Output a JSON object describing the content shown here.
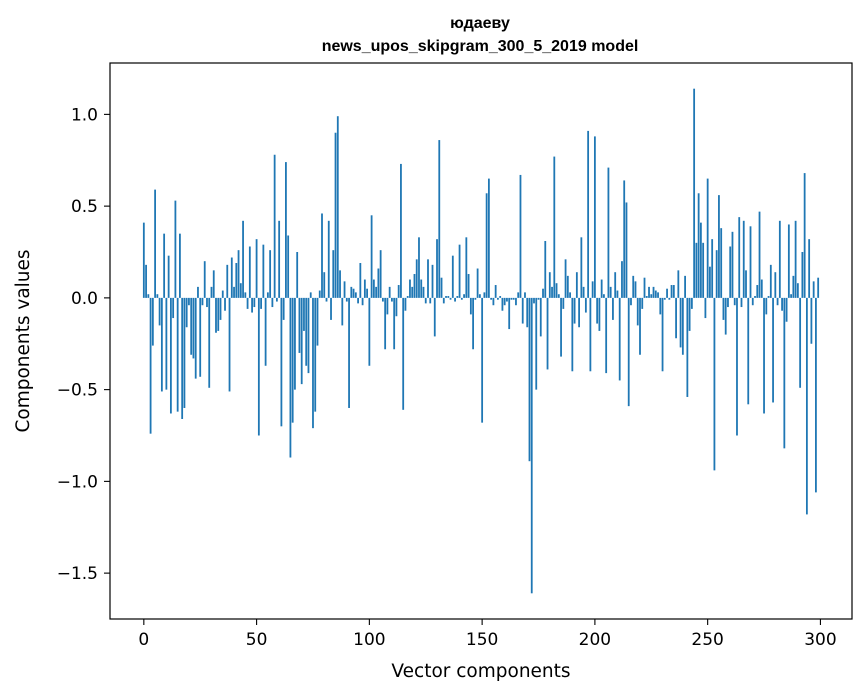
{
  "chart_data": {
    "type": "bar",
    "title": "юдаеву",
    "subtitle": "news_upos_skipgram_300_5_2019 model",
    "xlabel": "Vector components",
    "ylabel": "Components values",
    "xlim": [
      -15,
      314
    ],
    "ylim": [
      -1.75,
      1.28
    ],
    "xticks": [
      0,
      50,
      100,
      150,
      200,
      250,
      300
    ],
    "yticks": [
      -1.5,
      -1.0,
      -0.5,
      0.0,
      0.5,
      1.0
    ],
    "ytick_labels": [
      "−1.5",
      "−1.0",
      "−0.5",
      "0.0",
      "0.5",
      "1.0"
    ],
    "xtick_labels": [
      "0",
      "50",
      "100",
      "150",
      "200",
      "250",
      "300"
    ],
    "bar_color": "#1f77b4",
    "grid": false,
    "x": [
      0,
      1,
      2,
      3,
      4,
      5,
      6,
      7,
      8,
      9,
      10,
      11,
      12,
      13,
      14,
      15,
      16,
      17,
      18,
      19,
      20,
      21,
      22,
      23,
      24,
      25,
      26,
      27,
      28,
      29,
      30,
      31,
      32,
      33,
      34,
      35,
      36,
      37,
      38,
      39,
      40,
      41,
      42,
      43,
      44,
      45,
      46,
      47,
      48,
      49,
      50,
      51,
      52,
      53,
      54,
      55,
      56,
      57,
      58,
      59,
      60,
      61,
      62,
      63,
      64,
      65,
      66,
      67,
      68,
      69,
      70,
      71,
      72,
      73,
      74,
      75,
      76,
      77,
      78,
      79,
      80,
      81,
      82,
      83,
      84,
      85,
      86,
      87,
      88,
      89,
      90,
      91,
      92,
      93,
      94,
      95,
      96,
      97,
      98,
      99,
      100,
      101,
      102,
      103,
      104,
      105,
      106,
      107,
      108,
      109,
      110,
      111,
      112,
      113,
      114,
      115,
      116,
      117,
      118,
      119,
      120,
      121,
      122,
      123,
      124,
      125,
      126,
      127,
      128,
      129,
      130,
      131,
      132,
      133,
      134,
      135,
      136,
      137,
      138,
      139,
      140,
      141,
      142,
      143,
      144,
      145,
      146,
      147,
      148,
      149,
      150,
      151,
      152,
      153,
      154,
      155,
      156,
      157,
      158,
      159,
      160,
      161,
      162,
      163,
      164,
      165,
      166,
      167,
      168,
      169,
      170,
      171,
      172,
      173,
      174,
      175,
      176,
      177,
      178,
      179,
      180,
      181,
      182,
      183,
      184,
      185,
      186,
      187,
      188,
      189,
      190,
      191,
      192,
      193,
      194,
      195,
      196,
      197,
      198,
      199,
      200,
      201,
      202,
      203,
      204,
      205,
      206,
      207,
      208,
      209,
      210,
      211,
      212,
      213,
      214,
      215,
      216,
      217,
      218,
      219,
      220,
      221,
      222,
      223,
      224,
      225,
      226,
      227,
      228,
      229,
      230,
      231,
      232,
      233,
      234,
      235,
      236,
      237,
      238,
      239,
      240,
      241,
      242,
      243,
      244,
      245,
      246,
      247,
      248,
      249,
      250,
      251,
      252,
      253,
      254,
      255,
      256,
      257,
      258,
      259,
      260,
      261,
      262,
      263,
      264,
      265,
      266,
      267,
      268,
      269,
      270,
      271,
      272,
      273,
      274,
      275,
      276,
      277,
      278,
      279,
      280,
      281,
      282,
      283,
      284,
      285,
      286,
      287,
      288,
      289,
      290,
      291,
      292,
      293,
      294,
      295,
      296,
      297,
      298,
      299
    ],
    "values": [
      0.41,
      0.18,
      0.02,
      -0.74,
      -0.26,
      0.59,
      0.02,
      -0.15,
      -0.51,
      0.35,
      -0.5,
      0.23,
      -0.63,
      -0.11,
      0.53,
      -0.62,
      0.35,
      -0.66,
      -0.6,
      -0.16,
      -0.04,
      -0.31,
      -0.33,
      -0.44,
      0.06,
      -0.43,
      -0.04,
      0.2,
      -0.05,
      -0.49,
      0.06,
      0.15,
      -0.19,
      -0.18,
      -0.12,
      0.04,
      -0.07,
      0.18,
      -0.51,
      0.22,
      0.06,
      0.19,
      0.26,
      0.08,
      0.42,
      0.03,
      -0.06,
      0.28,
      -0.08,
      -0.05,
      0.32,
      -0.75,
      -0.06,
      0.29,
      -0.37,
      0.03,
      0.26,
      -0.05,
      0.78,
      -0.02,
      0.42,
      -0.7,
      -0.12,
      0.74,
      0.34,
      -0.87,
      -0.68,
      -0.5,
      0.25,
      -0.3,
      -0.47,
      -0.18,
      -0.37,
      -0.41,
      0.03,
      -0.71,
      -0.62,
      -0.26,
      0.04,
      0.46,
      0.14,
      -0.02,
      0.42,
      -0.12,
      0.26,
      0.9,
      0.99,
      0.15,
      -0.15,
      0.09,
      -0.02,
      -0.6,
      0.06,
      0.05,
      0.03,
      -0.03,
      0.19,
      -0.04,
      0.1,
      0.05,
      -0.37,
      0.45,
      0.1,
      0.06,
      0.16,
      0.26,
      -0.02,
      -0.28,
      -0.09,
      0.06,
      -0.02,
      -0.28,
      -0.1,
      0.07,
      0.73,
      -0.61,
      -0.07,
      0.01,
      0.1,
      0.06,
      0.13,
      0.21,
      0.33,
      0.1,
      0.06,
      -0.03,
      0.21,
      -0.03,
      0.18,
      -0.21,
      0.32,
      0.86,
      0.11,
      -0.03,
      0.01,
      0.01,
      -0.01,
      0.23,
      -0.02,
      0.01,
      0.29,
      -0.01,
      0.02,
      0.33,
      0.13,
      -0.09,
      -0.28,
      -0.01,
      0.16,
      0.02,
      -0.68,
      0.03,
      0.57,
      0.65,
      -0.01,
      -0.04,
      0.07,
      -0.01,
      0.01,
      -0.07,
      -0.04,
      -0.02,
      -0.17,
      -0.01,
      -0.01,
      -0.04,
      0.03,
      0.67,
      -0.14,
      0.03,
      -0.16,
      -0.89,
      -1.61,
      -0.03,
      -0.5,
      -0.01,
      -0.21,
      0.05,
      0.31,
      -0.39,
      0.14,
      0.06,
      0.77,
      0.08,
      0.02,
      -0.32,
      -0.06,
      0.21,
      0.12,
      0.03,
      -0.4,
      -0.14,
      0.14,
      -0.16,
      0.33,
      0.06,
      -0.08,
      0.91,
      -0.4,
      0.09,
      0.88,
      -0.14,
      -0.18,
      0.1,
      0.02,
      -0.41,
      0.71,
      0.06,
      -0.12,
      0.14,
      0.04,
      -0.45,
      0.2,
      0.64,
      0.52,
      -0.59,
      -0.04,
      0.12,
      0.09,
      -0.15,
      -0.31,
      -0.06,
      0.11,
      0.01,
      0.06,
      0.02,
      0.06,
      0.04,
      0.03,
      -0.09,
      -0.4,
      -0.01,
      0.05,
      -0.01,
      0.07,
      0.07,
      -0.22,
      0.15,
      -0.27,
      -0.31,
      0.12,
      -0.54,
      -0.18,
      -0.06,
      1.14,
      0.3,
      0.57,
      0.41,
      0.3,
      -0.11,
      0.65,
      0.17,
      0.32,
      -0.94,
      0.26,
      0.56,
      0.38,
      -0.12,
      -0.2,
      -0.05,
      0.28,
      0.36,
      -0.04,
      -0.75,
      0.44,
      -0.05,
      0.42,
      0.15,
      -0.58,
      0.39,
      -0.04,
      0.01,
      0.07,
      0.47,
      0.1,
      -0.63,
      -0.09,
      0.01,
      0.18,
      -0.57,
      0.14,
      -0.04,
      0.42,
      -0.07,
      -0.82,
      -0.13,
      0.4,
      0.02,
      0.12,
      0.42,
      0.08,
      -0.49,
      0.25,
      0.68,
      -1.18,
      0.32,
      -0.25,
      0.09,
      -1.06,
      0.11
    ]
  }
}
